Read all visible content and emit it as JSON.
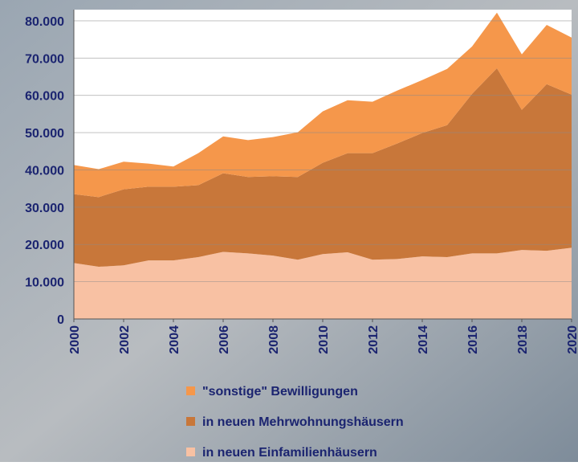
{
  "chart_data": {
    "type": "stacked-area",
    "x": [
      2000,
      2001,
      2002,
      2003,
      2004,
      2005,
      2006,
      2007,
      2008,
      2009,
      2010,
      2011,
      2012,
      2013,
      2014,
      2015,
      2016,
      2017,
      2018,
      2019,
      2020
    ],
    "series": [
      {
        "name": "in neuen Einfamilienhäusern",
        "color": "#f8c1a3",
        "values": [
          15000,
          14000,
          14400,
          15700,
          15700,
          16600,
          18000,
          17600,
          17000,
          15900,
          17400,
          17900,
          15900,
          16100,
          16800,
          16600,
          17600,
          17600,
          18500,
          18300,
          19100
        ]
      },
      {
        "name": "in neuen Mehrwohnungshäusern",
        "color": "#c8773a",
        "values": [
          18500,
          18700,
          20400,
          19800,
          19800,
          19300,
          21100,
          20500,
          21300,
          22200,
          24500,
          26600,
          28600,
          31000,
          33100,
          35400,
          42800,
          49700,
          37600,
          44700,
          41100
        ]
      },
      {
        "name": "\"sonstige\" Bewilligungen",
        "color": "#f5974b",
        "values": [
          7800,
          7500,
          7400,
          6200,
          5400,
          8600,
          9900,
          9900,
          10500,
          12000,
          13800,
          14200,
          13800,
          14200,
          14200,
          15100,
          12700,
          14900,
          14900,
          15900,
          15300
        ]
      }
    ],
    "xlim": [
      2000,
      2020
    ],
    "xticks": [
      2000,
      2002,
      2004,
      2006,
      2008,
      2010,
      2012,
      2014,
      2016,
      2018,
      2020
    ],
    "ylim": [
      0,
      83000
    ],
    "yticks": [
      0,
      {
        "value": 10000,
        "label": "10.000"
      },
      {
        "value": 20000,
        "label": "20.000"
      },
      {
        "value": 30000,
        "label": "30.000"
      },
      {
        "value": 40000,
        "label": "40.000"
      },
      {
        "value": 50000,
        "label": "50.000"
      },
      {
        "value": 60000,
        "label": "60.000"
      },
      {
        "value": 70000,
        "label": "70.000"
      },
      {
        "value": 80000,
        "label": "80.000"
      }
    ],
    "grid": true
  }
}
